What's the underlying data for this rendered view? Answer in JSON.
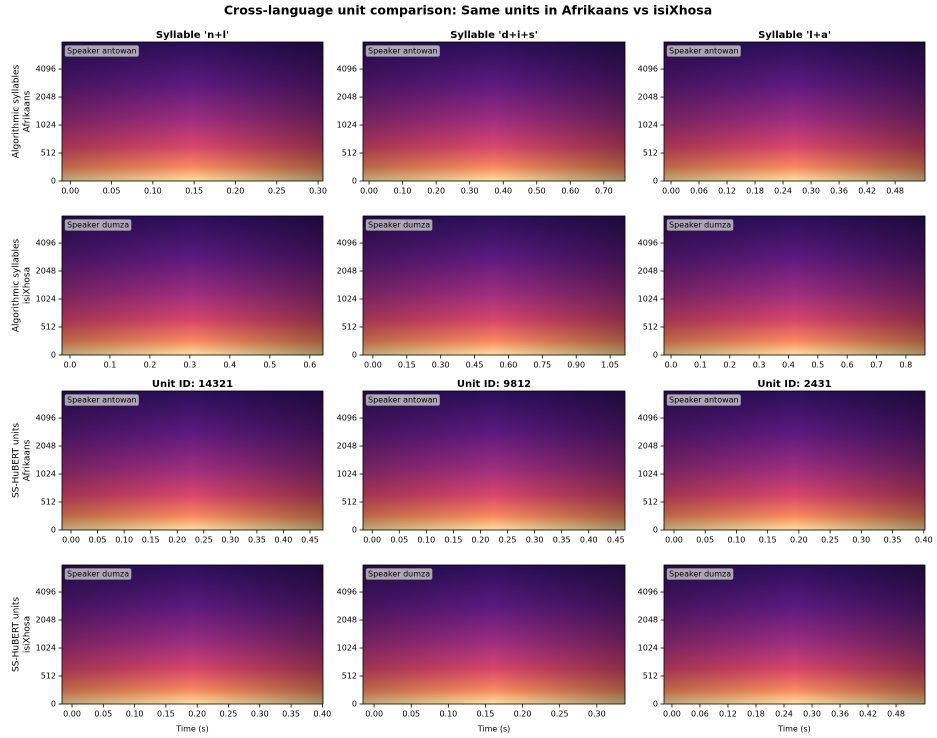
{
  "title": "Cross-language unit comparison: Same units in Afrikaans vs isiXhosa",
  "chart_data": [
    {
      "type": "spectrogram",
      "title": "Syllable 'n+l'",
      "ylabel": [
        "Algorithmic syllables",
        "Afrikaans"
      ],
      "annotation": "Speaker antowan",
      "xlim": [
        -0.01,
        0.306
      ],
      "xticks": [
        {
          "value": 0,
          "label": "0.00"
        },
        {
          "value": 0.05,
          "label": "0.05"
        },
        {
          "value": 0.1,
          "label": "0.10"
        },
        {
          "value": 0.15,
          "label": "0.15"
        },
        {
          "value": 0.2,
          "label": "0.20"
        },
        {
          "value": 0.25,
          "label": "0.25"
        },
        {
          "value": 0.3,
          "label": "0.30"
        }
      ],
      "ylim": [
        0,
        8000
      ],
      "yticks": [
        0,
        512,
        1024,
        2048,
        4096
      ],
      "yscale": "symlog",
      "linthresh": 512
    },
    {
      "type": "spectrogram",
      "title": "Syllable 'd+i+s'",
      "annotation": "Speaker antowan",
      "xlim": [
        -0.018,
        0.763
      ],
      "xticks": [
        {
          "value": 0,
          "label": "0.00"
        },
        {
          "value": 0.1,
          "label": "0.10"
        },
        {
          "value": 0.2,
          "label": "0.20"
        },
        {
          "value": 0.3,
          "label": "0.30"
        },
        {
          "value": 0.4,
          "label": "0.40"
        },
        {
          "value": 0.5,
          "label": "0.50"
        },
        {
          "value": 0.6,
          "label": "0.60"
        },
        {
          "value": 0.7,
          "label": "0.70"
        }
      ],
      "ylim": [
        0,
        8000
      ],
      "yticks": [
        0,
        512,
        1024,
        2048,
        4096
      ],
      "yscale": "symlog",
      "linthresh": 512
    },
    {
      "type": "spectrogram",
      "title": "Syllable 'l+a'",
      "annotation": "Speaker antowan",
      "xlim": [
        -0.015,
        0.544
      ],
      "xticks": [
        {
          "value": 0,
          "label": "0.00"
        },
        {
          "value": 0.06,
          "label": "0.06"
        },
        {
          "value": 0.12,
          "label": "0.12"
        },
        {
          "value": 0.18,
          "label": "0.18"
        },
        {
          "value": 0.24,
          "label": "0.24"
        },
        {
          "value": 0.3,
          "label": "0.30"
        },
        {
          "value": 0.36,
          "label": "0.36"
        },
        {
          "value": 0.42,
          "label": "0.42"
        },
        {
          "value": 0.48,
          "label": "0.48"
        }
      ],
      "ylim": [
        0,
        8000
      ],
      "yticks": [
        0,
        512,
        1024,
        2048,
        4096
      ],
      "yscale": "symlog",
      "linthresh": 512
    },
    {
      "type": "spectrogram",
      "ylabel": [
        "Algorithmic syllables",
        "isiXhosa"
      ],
      "annotation": "Speaker dumza",
      "xlim": [
        -0.02,
        0.633
      ],
      "xticks": [
        {
          "value": 0,
          "label": "0.0"
        },
        0.1,
        0.2,
        0.3,
        0.4,
        0.5,
        0.6
      ],
      "ylim": [
        0,
        8000
      ],
      "yticks": [
        0,
        512,
        1024,
        2048,
        4096
      ],
      "yscale": "symlog",
      "linthresh": 512
    },
    {
      "type": "spectrogram",
      "annotation": "Speaker dumza",
      "xlim": [
        -0.044,
        1.116
      ],
      "xticks": [
        {
          "value": 0,
          "label": "0.00"
        },
        0.15,
        {
          "value": 0.3,
          "label": "0.30"
        },
        0.45,
        {
          "value": 0.6,
          "label": "0.60"
        },
        0.75,
        {
          "value": 0.9,
          "label": "0.90"
        },
        1.05
      ],
      "ylim": [
        0,
        8000
      ],
      "yticks": [
        0,
        512,
        1024,
        2048,
        4096
      ],
      "yscale": "symlog",
      "linthresh": 512
    },
    {
      "type": "spectrogram",
      "annotation": "Speaker dumza",
      "xlim": [
        -0.024,
        0.865
      ],
      "xticks": [
        {
          "value": 0,
          "label": "0.0"
        },
        0.1,
        0.2,
        0.3,
        0.4,
        0.5,
        0.6,
        0.7,
        0.8
      ],
      "ylim": [
        0,
        8000
      ],
      "yticks": [
        0,
        512,
        1024,
        2048,
        4096
      ],
      "yscale": "symlog",
      "linthresh": 512
    },
    {
      "type": "spectrogram",
      "title": "Unit ID: 14321",
      "ylabel": [
        "SS-HuBERT units",
        "Afrikaans"
      ],
      "annotation": "Speaker antowan",
      "xlim": [
        -0.017,
        0.4745
      ],
      "xticks": [
        {
          "value": 0,
          "label": "0.00"
        },
        0.05,
        {
          "value": 0.1,
          "label": "0.10"
        },
        0.15,
        {
          "value": 0.2,
          "label": "0.20"
        },
        0.25,
        {
          "value": 0.3,
          "label": "0.30"
        },
        0.35,
        {
          "value": 0.4,
          "label": "0.40"
        },
        0.45
      ],
      "ylim": [
        0,
        8000
      ],
      "yticks": [
        0,
        512,
        1024,
        2048,
        4096
      ],
      "yscale": "symlog",
      "linthresh": 512
    },
    {
      "type": "spectrogram",
      "title": "Unit ID: 9812",
      "annotation": "Speaker antowan",
      "xlim": [
        -0.017,
        0.467
      ],
      "xticks": [
        {
          "value": 0,
          "label": "0.00"
        },
        0.05,
        {
          "value": 0.1,
          "label": "0.10"
        },
        0.15,
        {
          "value": 0.2,
          "label": "0.20"
        },
        0.25,
        {
          "value": 0.3,
          "label": "0.30"
        },
        0.35,
        {
          "value": 0.4,
          "label": "0.40"
        },
        0.45
      ],
      "ylim": [
        0,
        8000
      ],
      "yticks": [
        0,
        512,
        1024,
        2048,
        4096
      ],
      "yscale": "symlog",
      "linthresh": 512
    },
    {
      "type": "spectrogram",
      "title": "Unit ID: 2431",
      "annotation": "Speaker antowan",
      "xlim": [
        -0.016,
        0.402
      ],
      "xticks": [
        {
          "value": 0,
          "label": "0.00"
        },
        0.05,
        {
          "value": 0.1,
          "label": "0.10"
        },
        0.15,
        {
          "value": 0.2,
          "label": "0.20"
        },
        0.25,
        {
          "value": 0.3,
          "label": "0.30"
        },
        0.35,
        {
          "value": 0.4,
          "label": "0.40"
        }
      ],
      "ylim": [
        0,
        8000
      ],
      "yticks": [
        0,
        512,
        1024,
        2048,
        4096
      ],
      "yscale": "symlog",
      "linthresh": 512
    },
    {
      "type": "spectrogram",
      "ylabel": [
        "SS-HuBERT units",
        "isiXhosa"
      ],
      "xlabel": "Time (s)",
      "annotation": "Speaker dumza",
      "xlim": [
        -0.016,
        0.401
      ],
      "xticks": [
        {
          "value": 0,
          "label": "0.00"
        },
        0.05,
        {
          "value": 0.1,
          "label": "0.10"
        },
        0.15,
        {
          "value": 0.2,
          "label": "0.20"
        },
        0.25,
        {
          "value": 0.3,
          "label": "0.30"
        },
        0.35,
        {
          "value": 0.4,
          "label": "0.40"
        }
      ],
      "ylim": [
        0,
        8000
      ],
      "yticks": [
        0,
        512,
        1024,
        2048,
        4096
      ],
      "yscale": "symlog",
      "linthresh": 512
    },
    {
      "type": "spectrogram",
      "xlabel": "Time (s)",
      "annotation": "Speaker dumza",
      "xlim": [
        -0.015,
        0.338
      ],
      "xticks": [
        {
          "value": 0,
          "label": "0.00"
        },
        0.05,
        {
          "value": 0.1,
          "label": "0.10"
        },
        0.15,
        {
          "value": 0.2,
          "label": "0.20"
        },
        0.25,
        {
          "value": 0.3,
          "label": "0.30"
        }
      ],
      "ylim": [
        0,
        8000
      ],
      "yticks": [
        0,
        512,
        1024,
        2048,
        4096
      ],
      "yscale": "symlog",
      "linthresh": 512
    },
    {
      "type": "spectrogram",
      "xlabel": "Time (s)",
      "annotation": "Speaker dumza",
      "xlim": [
        -0.017,
        0.542
      ],
      "xticks": [
        {
          "value": 0,
          "label": "0.00"
        },
        0.06,
        0.12,
        0.18,
        0.24,
        {
          "value": 0.3,
          "label": "0.30"
        },
        0.36,
        0.42,
        0.48
      ],
      "ylim": [
        0,
        8000
      ],
      "yticks": [
        0,
        512,
        1024,
        2048,
        4096
      ],
      "yscale": "symlog",
      "linthresh": 512
    }
  ]
}
